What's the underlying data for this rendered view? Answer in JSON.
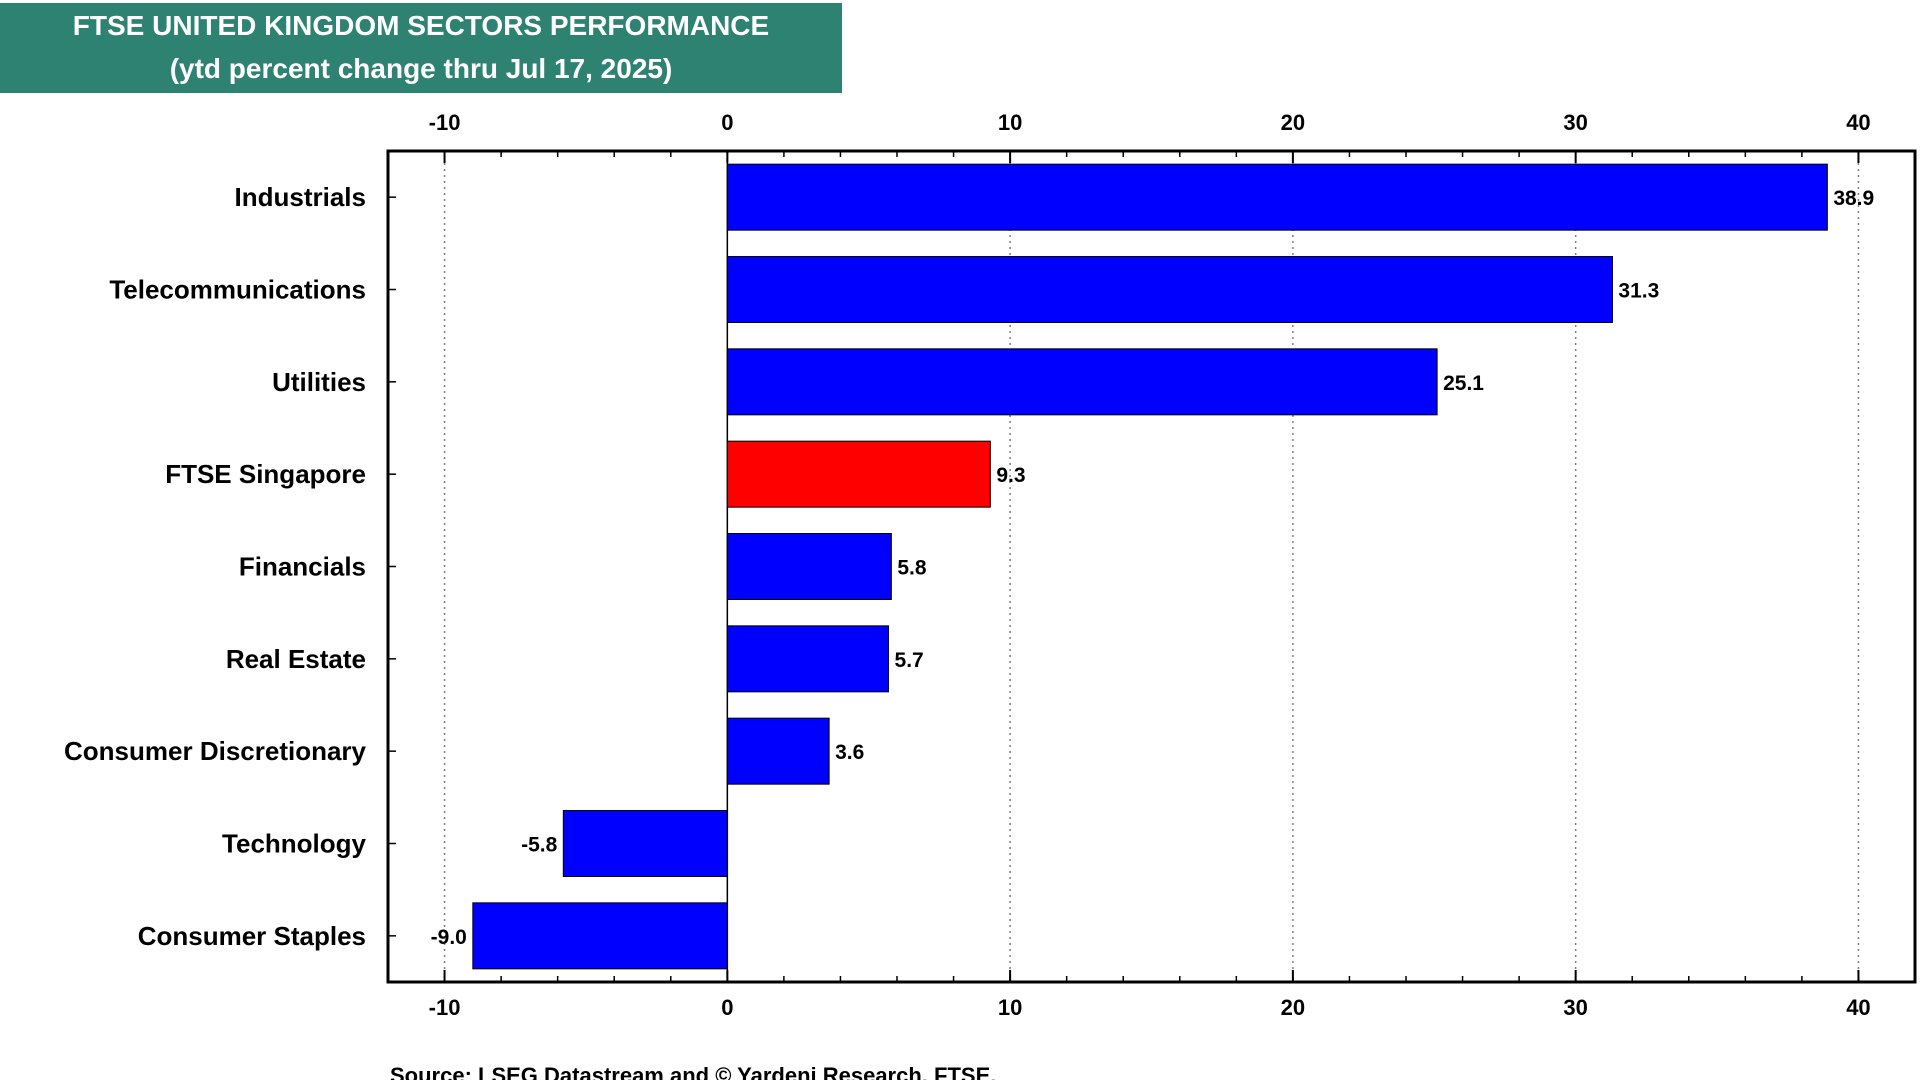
{
  "header": {
    "title": "FTSE UNITED KINGDOM SECTORS PERFORMANCE",
    "subtitle": "(ytd percent change thru Jul 17, 2025)"
  },
  "footer": {
    "source": "Source: LSEG Datastream and © Yardeni Research. FTSE."
  },
  "colors": {
    "header_bg": "#2e8272",
    "header_text": "#ffffff",
    "bar_default": "#0000ff",
    "bar_highlight": "#ff0000",
    "grid": "#808080"
  },
  "chart_data": {
    "type": "bar",
    "orientation": "horizontal",
    "title": "FTSE UNITED KINGDOM SECTORS PERFORMANCE",
    "subtitle": "(ytd percent change thru Jul 17, 2025)",
    "xlabel": "",
    "ylabel": "",
    "xlim": [
      -12,
      42
    ],
    "xticks": [
      -10,
      0,
      10,
      20,
      30,
      40
    ],
    "grid": true,
    "legend": "none",
    "categories": [
      "Industrials",
      "Telecommunications",
      "Utilities",
      "FTSE Singapore",
      "Financials",
      "Real Estate",
      "Consumer Discretionary",
      "Technology",
      "Consumer Staples"
    ],
    "values": [
      38.9,
      31.3,
      25.1,
      9.3,
      5.8,
      5.7,
      3.6,
      -5.8,
      -9.0
    ],
    "value_labels": [
      "38.9",
      "31.3",
      "25.1",
      "9.3",
      "5.8",
      "5.7",
      "3.6",
      "-5.8",
      "-9.0"
    ],
    "highlight": [
      "FTSE Singapore"
    ]
  }
}
